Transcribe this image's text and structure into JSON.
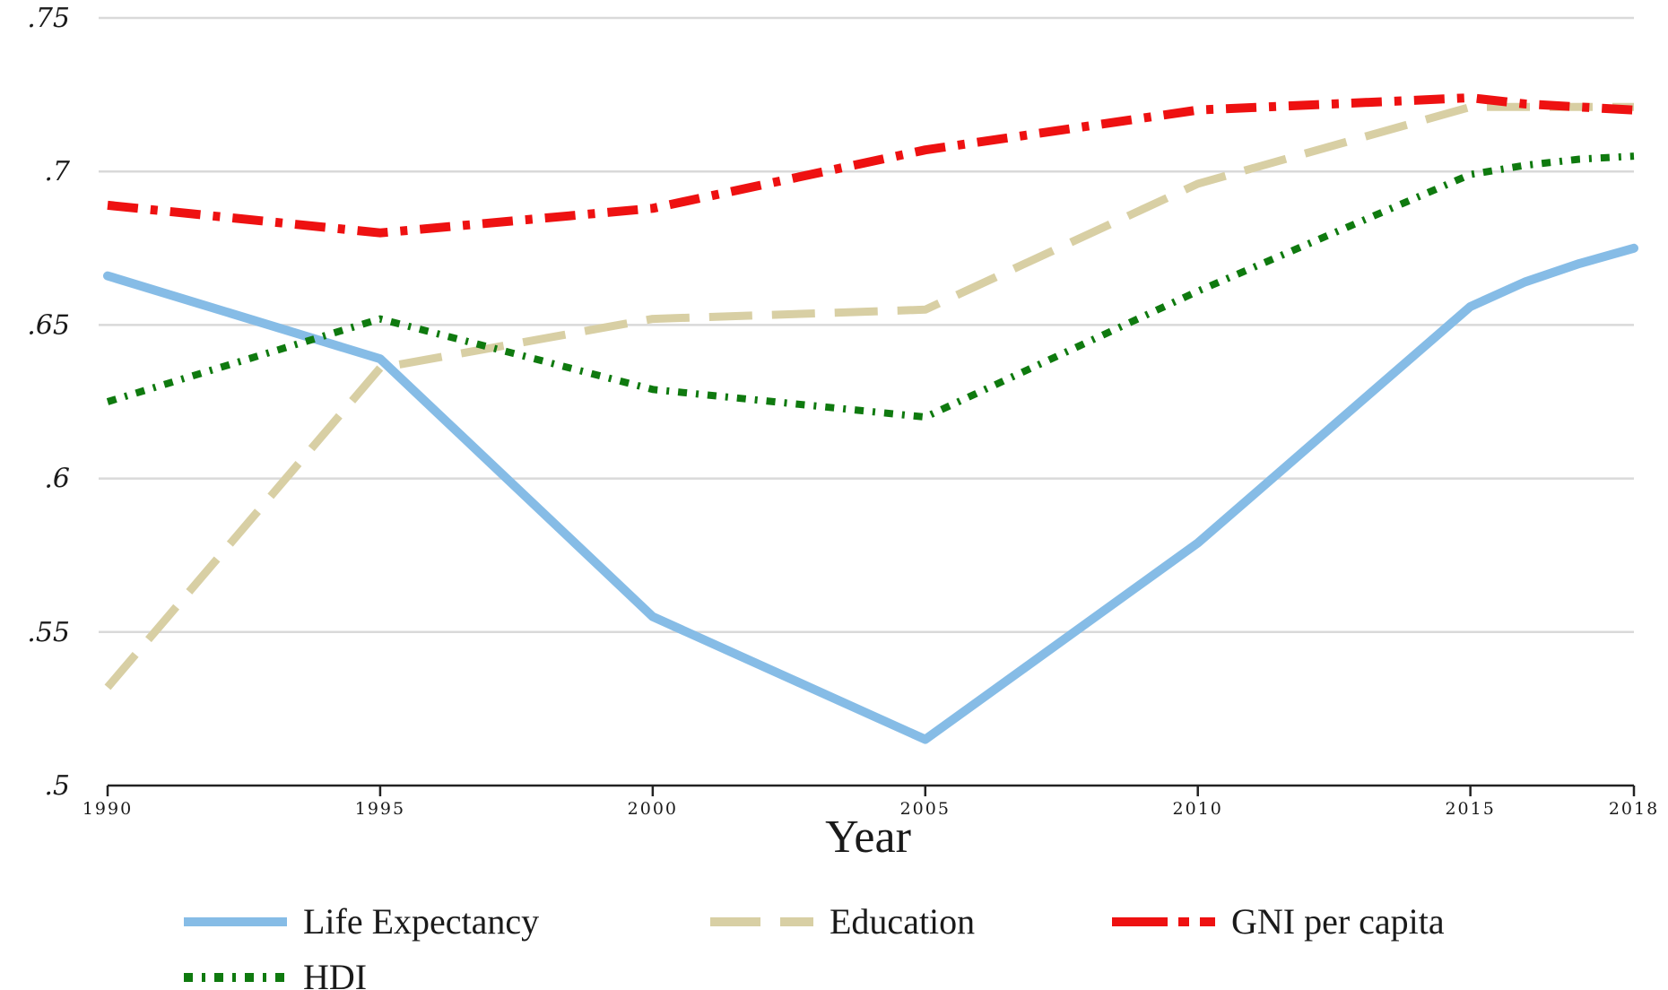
{
  "chart_data": {
    "type": "line",
    "title": "",
    "xlabel": "Year",
    "ylabel": "",
    "x": [
      1990,
      1995,
      2000,
      2005,
      2010,
      2015,
      2016,
      2017,
      2018
    ],
    "xticks": [
      1990,
      1995,
      2000,
      2005,
      2010,
      2015,
      2018
    ],
    "xtick_labels": [
      "1990",
      "1995",
      "2000",
      "2005",
      "2010",
      "2015",
      "2018"
    ],
    "xlim": [
      1990,
      2018
    ],
    "ylim": [
      0.5,
      0.75
    ],
    "yticks": [
      0.5,
      0.55,
      0.6,
      0.65,
      0.7,
      0.75
    ],
    "ytick_labels": [
      ".5",
      ".55",
      ".6",
      ".65",
      ".7",
      ".75"
    ],
    "grid": "horizontal",
    "legend_position": "bottom",
    "series": [
      {
        "name": "Life Expectancy",
        "color": "#86bce6",
        "style": "solid",
        "values": [
          0.666,
          0.639,
          0.555,
          0.515,
          0.579,
          0.656,
          0.664,
          0.67,
          0.675
        ]
      },
      {
        "name": "Education",
        "color": "#d8cfa4",
        "style": "dash",
        "values": [
          0.532,
          0.636,
          0.652,
          0.655,
          0.696,
          0.721,
          0.721,
          0.721,
          0.721
        ]
      },
      {
        "name": "GNI per capita",
        "color": "#ee1111",
        "style": "dash-dot",
        "values": [
          0.689,
          0.68,
          0.688,
          0.707,
          0.72,
          0.724,
          0.722,
          0.721,
          0.72
        ]
      },
      {
        "name": "HDI",
        "color": "#0f7a0f",
        "style": "dot-dash",
        "values": [
          0.625,
          0.652,
          0.629,
          0.62,
          0.661,
          0.699,
          0.702,
          0.704,
          0.705
        ]
      }
    ]
  }
}
